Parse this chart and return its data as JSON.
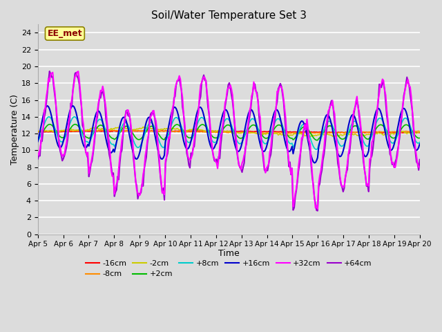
{
  "title": "Soil/Water Temperature Set 3",
  "xlabel": "Time",
  "ylabel": "Temperature (C)",
  "ylim": [
    0,
    25
  ],
  "yticks": [
    0,
    2,
    4,
    6,
    8,
    10,
    12,
    14,
    16,
    18,
    20,
    22,
    24
  ],
  "x_labels": [
    "Apr 5",
    "Apr 6",
    "Apr 7",
    "Apr 8",
    "Apr 9",
    "Apr 10",
    "Apr 11",
    "Apr 12",
    "Apr 13",
    "Apr 14",
    "Apr 15",
    "Apr 16",
    "Apr 17",
    "Apr 18",
    "Apr 19",
    "Apr 20"
  ],
  "annotation_text": "EE_met",
  "annotation_color": "#8B0000",
  "annotation_bg": "#FFFF99",
  "annotation_border": "#8B8000",
  "series_colors": {
    "-16cm": "#FF0000",
    "-8cm": "#FF8C00",
    "-2cm": "#CCCC00",
    "+2cm": "#00BB00",
    "+8cm": "#00CCCC",
    "+16cm": "#0000CC",
    "+32cm": "#FF00FF",
    "+64cm": "#9900CC"
  },
  "series_lw": {
    "-16cm": 1.2,
    "-8cm": 1.2,
    "-2cm": 1.2,
    "+2cm": 1.2,
    "+8cm": 1.2,
    "+16cm": 1.5,
    "+32cm": 1.5,
    "+64cm": 1.5
  },
  "axes_bg": "#DCDCDC",
  "grid_color": "#FFFFFF",
  "fig_bg": "#DCDCDC",
  "figsize": [
    6.4,
    4.8
  ],
  "dpi": 100
}
